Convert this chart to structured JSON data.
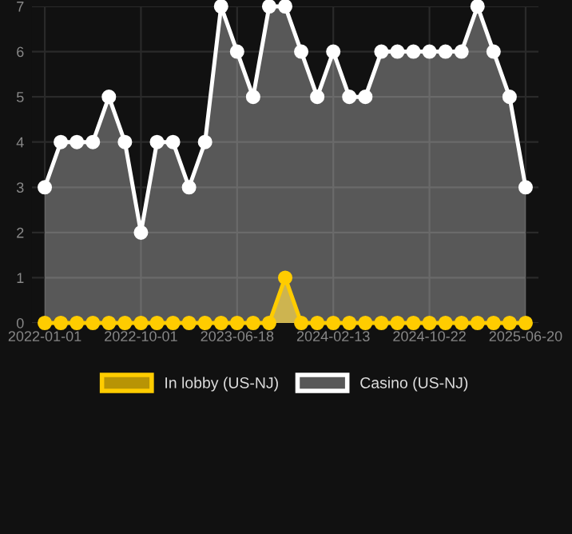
{
  "chart_data": {
    "type": "area",
    "categories": [
      "2022-01-01",
      null,
      null,
      null,
      null,
      null,
      "2022-10-01",
      null,
      null,
      null,
      null,
      null,
      "2023-06-18",
      null,
      null,
      null,
      null,
      null,
      "2024-02-13",
      null,
      null,
      null,
      null,
      null,
      "2024-10-22",
      null,
      null,
      null,
      null,
      null,
      "2025-06-20"
    ],
    "series": [
      {
        "name": "In lobby (US-NJ)",
        "color": "#ffcc00",
        "values": [
          0,
          0,
          0,
          0,
          0,
          0,
          0,
          0,
          0,
          0,
          0,
          0,
          0,
          0,
          0,
          1,
          0,
          0,
          0,
          0,
          0,
          0,
          0,
          0,
          0,
          0,
          0,
          0,
          0,
          0,
          0
        ]
      },
      {
        "name": "Casino (US-NJ)",
        "color": "#ffffff",
        "values": [
          3,
          4,
          4,
          4,
          5,
          4,
          2,
          4,
          4,
          3,
          4,
          7,
          6,
          5,
          7,
          7,
          6,
          5,
          6,
          5,
          5,
          6,
          6,
          6,
          6,
          6,
          6,
          7,
          6,
          5,
          3
        ]
      }
    ],
    "ylim": [
      0,
      7
    ],
    "yticks": [
      0,
      1,
      2,
      3,
      4,
      5,
      6,
      7
    ],
    "grid": true,
    "legend": "bottom",
    "marker": "circle"
  }
}
